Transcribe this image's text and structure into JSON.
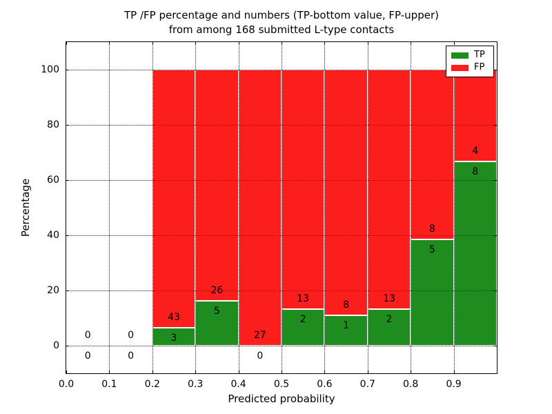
{
  "figure": {
    "background": "#ffffff",
    "title_line1": "TP /FP percentage and numbers (TP-bottom value, FP-upper)",
    "title_line2": "from among 168 submitted L-type contacts"
  },
  "chart_data": {
    "type": "bar",
    "stacked": true,
    "title": "TP /FP percentage and numbers (TP-bottom value, FP-upper) from among 168 submitted L-type contacts",
    "xlabel": "Predicted probability",
    "ylabel": "Percentage",
    "xlim": [
      0.0,
      1.0
    ],
    "ylim": [
      -10,
      110
    ],
    "x_ticks": [
      {
        "value": 0.0,
        "label": "0.0"
      },
      {
        "value": 0.1,
        "label": "0.1"
      },
      {
        "value": 0.2,
        "label": "0.2"
      },
      {
        "value": 0.3,
        "label": "0.3"
      },
      {
        "value": 0.4,
        "label": "0.4"
      },
      {
        "value": 0.5,
        "label": "0.5"
      },
      {
        "value": 0.6,
        "label": "0.6"
      },
      {
        "value": 0.7,
        "label": "0.7"
      },
      {
        "value": 0.8,
        "label": "0.8"
      },
      {
        "value": 0.9,
        "label": "0.9"
      }
    ],
    "y_ticks": [
      {
        "value": 0,
        "label": "0"
      },
      {
        "value": 20,
        "label": "20"
      },
      {
        "value": 40,
        "label": "40"
      },
      {
        "value": 60,
        "label": "60"
      },
      {
        "value": 80,
        "label": "80"
      },
      {
        "value": 100,
        "label": "100"
      }
    ],
    "grid": {
      "style": "dotted",
      "color": "#222222",
      "drawn_above_bars": true
    },
    "bins": [
      {
        "range": [
          0.0,
          0.1
        ],
        "tp": 0,
        "fp": 0
      },
      {
        "range": [
          0.1,
          0.2
        ],
        "tp": 0,
        "fp": 0
      },
      {
        "range": [
          0.2,
          0.3
        ],
        "tp": 3,
        "fp": 43
      },
      {
        "range": [
          0.3,
          0.4
        ],
        "tp": 5,
        "fp": 26
      },
      {
        "range": [
          0.4,
          0.5
        ],
        "tp": 0,
        "fp": 27
      },
      {
        "range": [
          0.5,
          0.6
        ],
        "tp": 2,
        "fp": 13
      },
      {
        "range": [
          0.6,
          0.7
        ],
        "tp": 1,
        "fp": 8
      },
      {
        "range": [
          0.7,
          0.8
        ],
        "tp": 2,
        "fp": 13
      },
      {
        "range": [
          0.8,
          0.9
        ],
        "tp": 5,
        "fp": 8
      },
      {
        "range": [
          0.9,
          1.0
        ],
        "tp": 8,
        "fp": 4
      }
    ],
    "bar_total_percentage": 100,
    "colors": {
      "tp": "#1e8c1e",
      "fp": "#fc1d1d",
      "bar_edge": "#ffffff"
    },
    "legend": {
      "position": "upper right",
      "items": [
        {
          "label": "TP",
          "color": "#1e8c1e"
        },
        {
          "label": "FP",
          "color": "#fc1d1d"
        }
      ]
    }
  }
}
